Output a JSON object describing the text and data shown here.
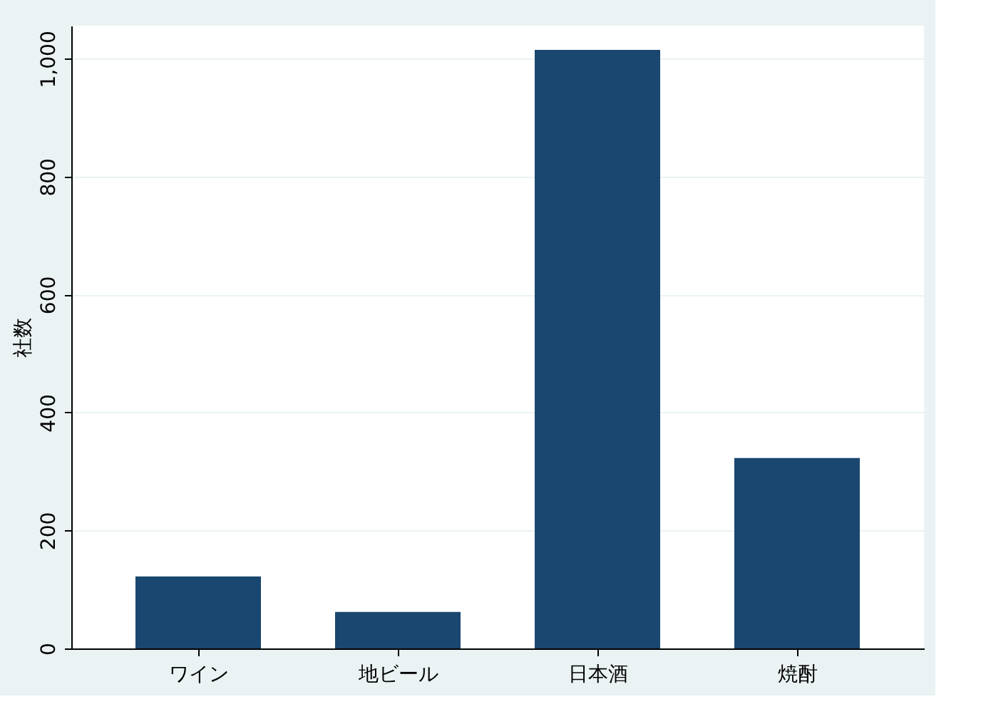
{
  "chart_data": {
    "type": "bar",
    "ylabel": "社数",
    "categories": [
      "ワイン",
      "地ビール",
      "日本酒",
      "焼酎"
    ],
    "values": [
      122,
      62,
      1015,
      323
    ],
    "color": "#1a476f",
    "ylim": [
      0,
      1056
    ],
    "yticks": [
      0,
      200,
      400,
      600,
      800,
      {
        "value": 1000,
        "label": "1,000"
      }
    ],
    "grid": "y"
  }
}
